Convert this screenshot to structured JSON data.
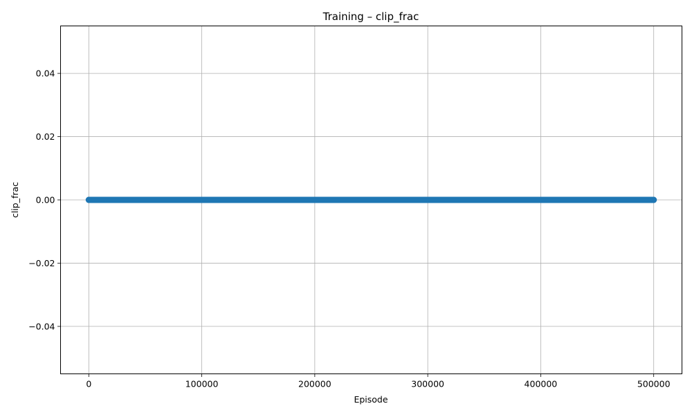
{
  "chart_data": {
    "type": "line",
    "title": "Training – clip_frac",
    "xlabel": "Episode",
    "ylabel": "clip_frac",
    "xlim": [
      -25000,
      525000
    ],
    "ylim": [
      -0.055,
      0.055
    ],
    "xticks": [
      0,
      100000,
      200000,
      300000,
      400000,
      500000
    ],
    "xtick_labels": [
      "0",
      "100000",
      "200000",
      "300000",
      "400000",
      "500000"
    ],
    "yticks": [
      -0.04,
      -0.02,
      0.0,
      0.02,
      0.04
    ],
    "ytick_labels": [
      "−0.04",
      "−0.02",
      "0.00",
      "0.02",
      "0.04"
    ],
    "grid": true,
    "series": [
      {
        "color": "#1f77b4",
        "marker": "circle",
        "x_start": 0,
        "x_end": 500000,
        "y_constant": 0.0
      }
    ]
  }
}
